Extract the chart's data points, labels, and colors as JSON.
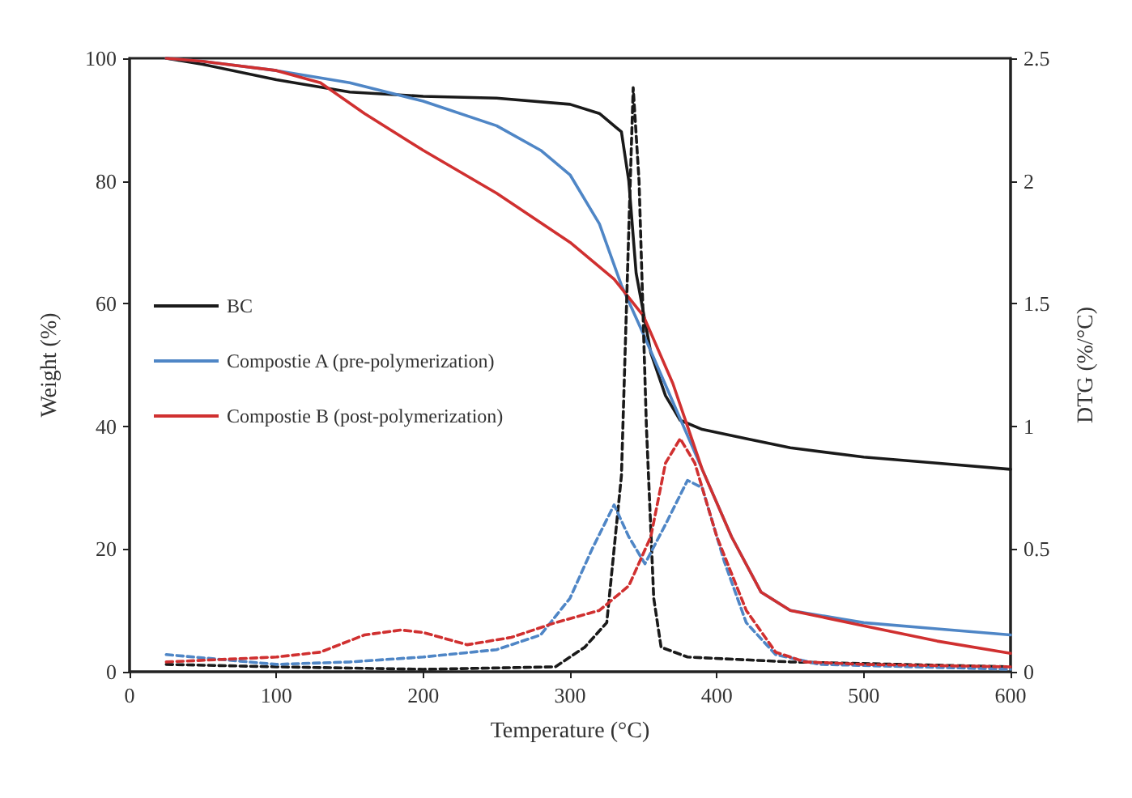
{
  "chart_data": {
    "type": "line",
    "xlabel": "Temperature (°C)",
    "ylabel": "Weight (%)",
    "y2label": "DTG (%/°C)",
    "xlim": [
      0,
      600
    ],
    "xticks": [
      0,
      100,
      200,
      300,
      400,
      500,
      600
    ],
    "ylim": [
      0,
      100
    ],
    "yticks": [
      0,
      20,
      40,
      60,
      80,
      100
    ],
    "y2lim": [
      0,
      2.5
    ],
    "y2ticks": [
      0,
      0.5,
      1,
      1.5,
      2,
      2.5
    ],
    "grid": false,
    "legend": "left",
    "marker": "none",
    "series": [
      {
        "name": "BC",
        "color": "#1a1a1a",
        "x": [
          25,
          50,
          100,
          150,
          200,
          250,
          300,
          320,
          335,
          340,
          345,
          355,
          365,
          375,
          390,
          420,
          450,
          500,
          550,
          600
        ],
        "values": [
          100,
          99,
          96.5,
          94.5,
          93.8,
          93.5,
          92.5,
          91,
          88,
          80,
          65,
          52,
          45,
          41,
          39.5,
          38,
          36.5,
          35,
          34,
          33
        ]
      },
      {
        "name": "Compostie A (pre-polymerization)",
        "color": "#4f86c6",
        "x": [
          25,
          50,
          100,
          150,
          200,
          250,
          280,
          300,
          320,
          335,
          350,
          370,
          390,
          410,
          430,
          450,
          500,
          550,
          600
        ],
        "values": [
          100,
          99.5,
          98,
          96,
          93,
          89,
          85,
          81,
          73,
          63,
          55,
          44,
          33,
          22,
          13,
          10,
          8,
          7,
          6
        ]
      },
      {
        "name": "Compostie B (post-polymerization)",
        "color": "#d03030",
        "x": [
          25,
          50,
          100,
          130,
          160,
          200,
          250,
          300,
          330,
          350,
          370,
          390,
          410,
          430,
          450,
          500,
          550,
          600
        ],
        "values": [
          100,
          99.5,
          98,
          96,
          91,
          85,
          78,
          70,
          64,
          58,
          47,
          33,
          22,
          13,
          10,
          7.5,
          5,
          3
        ]
      },
      {
        "color": "#1a1a1a",
        "axis": "y2",
        "line_style": "dashed",
        "x": [
          25,
          100,
          200,
          290,
          310,
          325,
          335,
          340,
          343,
          347,
          352,
          357,
          362,
          380,
          450,
          600
        ],
        "values": [
          0.03,
          0.02,
          0.01,
          0.02,
          0.1,
          0.2,
          0.8,
          1.8,
          2.38,
          2,
          1,
          0.3,
          0.1,
          0.06,
          0.04,
          0.02
        ]
      },
      {
        "color": "#4f86c6",
        "axis": "y2",
        "line_style": "dashed",
        "x": [
          25,
          100,
          150,
          200,
          250,
          280,
          300,
          315,
          330,
          340,
          351,
          365,
          380,
          390,
          405,
          420,
          440,
          470,
          600
        ],
        "values": [
          0.07,
          0.03,
          0.04,
          0.06,
          0.09,
          0.15,
          0.3,
          0.5,
          0.68,
          0.55,
          0.44,
          0.6,
          0.78,
          0.75,
          0.45,
          0.2,
          0.07,
          0.03,
          0.01
        ]
      },
      {
        "color": "#d03030",
        "axis": "y2",
        "line_style": "dashed",
        "x": [
          25,
          100,
          130,
          160,
          185,
          200,
          230,
          260,
          290,
          320,
          340,
          355,
          365,
          375,
          385,
          400,
          420,
          440,
          460,
          500,
          600
        ],
        "values": [
          0.04,
          0.06,
          0.08,
          0.15,
          0.17,
          0.16,
          0.11,
          0.14,
          0.2,
          0.25,
          0.35,
          0.55,
          0.85,
          0.95,
          0.85,
          0.55,
          0.25,
          0.08,
          0.04,
          0.03,
          0.02
        ]
      }
    ]
  }
}
